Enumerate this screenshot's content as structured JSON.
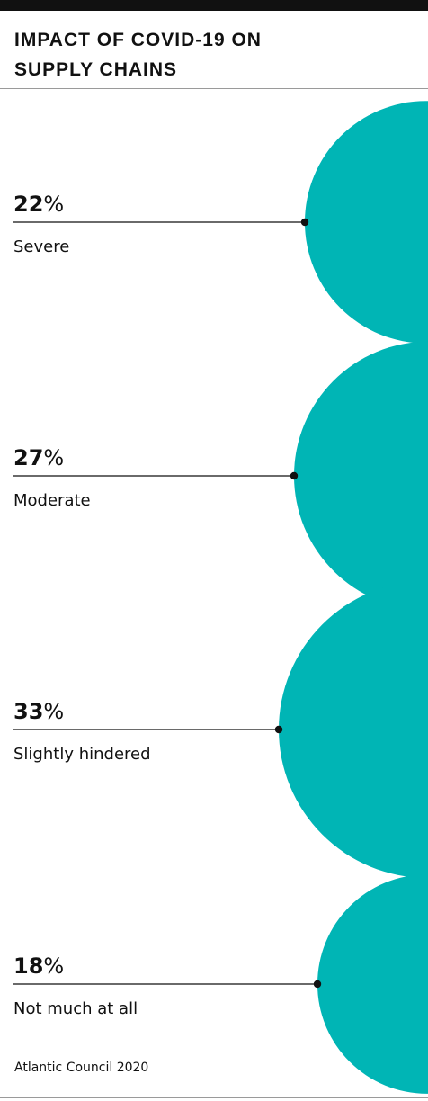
{
  "header": {
    "title_line1": "IMPACT OF COVID-19 ON",
    "title_line2": "SUPPLY CHAINS"
  },
  "source": "Atlantic Council 2020",
  "chart_data": {
    "type": "bubble",
    "title": "IMPACT OF COVID-19 ON SUPPLY CHAINS",
    "unit": "%",
    "categories": [
      "Severe",
      "Moderate",
      "Slightly hindered",
      "Not much at all"
    ],
    "values": [
      22,
      27,
      33,
      18
    ],
    "colors": {
      "bubble": "#00b5b5",
      "text": "#111111",
      "rule": "#111111"
    }
  }
}
